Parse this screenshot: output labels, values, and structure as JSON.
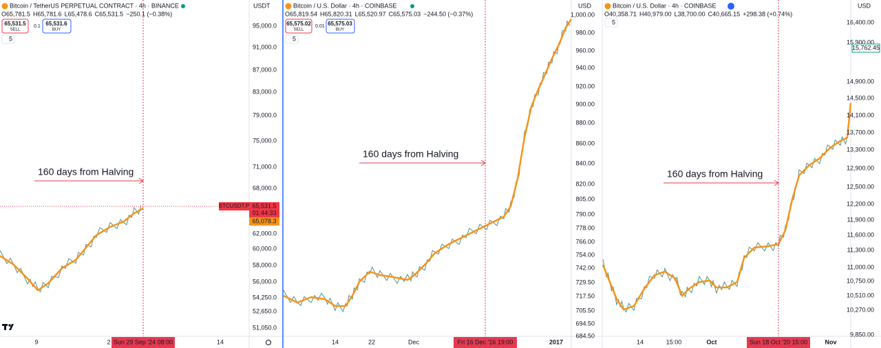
{
  "panels": [
    {
      "title": "Bitcoin / TetherUS PERPETUAL CONTRACT · 4h · BINANCE",
      "ohlc": {
        "open": "O65,781.5",
        "high": "H65,781.6",
        "low": "L65,478.6",
        "close": "C65,531.5",
        "change": "−250.1 (−0.38%)"
      },
      "sell": {
        "price": "65,531.5",
        "label": "SELL"
      },
      "spread": "0.1",
      "buy": {
        "price": "65,531.6",
        "label": "BUY"
      },
      "interval_count": "5",
      "currency": "USDT",
      "price_labels": [
        "95,000.0",
        "91,000.0",
        "87,000.0",
        "83,000.0",
        "79,000.0",
        "75,000.0",
        "71,000.0",
        "68,000.0",
        "62,000.0",
        "60,000.0",
        "58,000.0",
        "56,000.0",
        "54,250.0",
        "52,650.0",
        "51,050.0"
      ],
      "time_labels": [
        "9",
        "2",
        "14"
      ],
      "crosshair_time": "Sun 29 Sep '24   08:00",
      "annotation": "160 days from Halving",
      "badges": {
        "symbol": "BTCUSDT.P",
        "last": "65,531.5",
        "countdown": "01:44:33",
        "ma": "65,078.3"
      }
    },
    {
      "title": "Bitcoin / U.S. Dollar · 4h · COINBASE",
      "ohlc": {
        "open": "O65,819.54",
        "high": "H65,820.31",
        "low": "L65,520.97",
        "close": "C65,575.03",
        "change": "−244.50 (−0.37%)"
      },
      "sell": {
        "price": "65,575.02",
        "label": "SELL"
      },
      "spread": "0.01",
      "buy": {
        "price": "65,575.03",
        "label": "BUY"
      },
      "interval_count": "5",
      "currency": "USD",
      "price_labels": [
        "1,000.00",
        "980.00",
        "960.00",
        "940.00",
        "920.00",
        "900.00",
        "880.00",
        "860.00",
        "840.00",
        "820.00",
        "805.00",
        "790.00",
        "778.00",
        "766.00",
        "754.00",
        "742.00",
        "729.50",
        "717.50",
        "705.50",
        "694.50",
        "684.50"
      ],
      "time_labels": [
        "14",
        "22",
        "Dec",
        "2017"
      ],
      "crosshair_time": "Fri 16 Dec '16   19:00",
      "annotation": "160 days from Halving"
    },
    {
      "title": "Bitcoin / U.S. Dollar · 4h · COINBASE",
      "ohlc": {
        "open": "O40,358.71",
        "high": "H40,979.00",
        "low": "L38,700.00",
        "close": "C40,665.15",
        "change": "+298.38 (+0.74%)"
      },
      "interval_count": "5",
      "currency": "USD",
      "price_labels": [
        "16,400.00",
        "15,900.00",
        "14,900.00",
        "14,500.00",
        "14,100.00",
        "13,700.00",
        "13,300.00",
        "12,900.00",
        "12,500.00",
        "12,200.00",
        "11,900.00",
        "11,600.00",
        "11,300.00",
        "11,000.00",
        "10,750.00",
        "10,510.00",
        "10,270.00",
        "9,850.00"
      ],
      "time_labels": [
        "14",
        "15:00",
        "Oct",
        "Nov"
      ],
      "crosshair_time": "Sun 18 Oct '20   15:00",
      "annotation": "160 days from Halving",
      "badges": {
        "last": "15,762.45"
      }
    }
  ]
}
